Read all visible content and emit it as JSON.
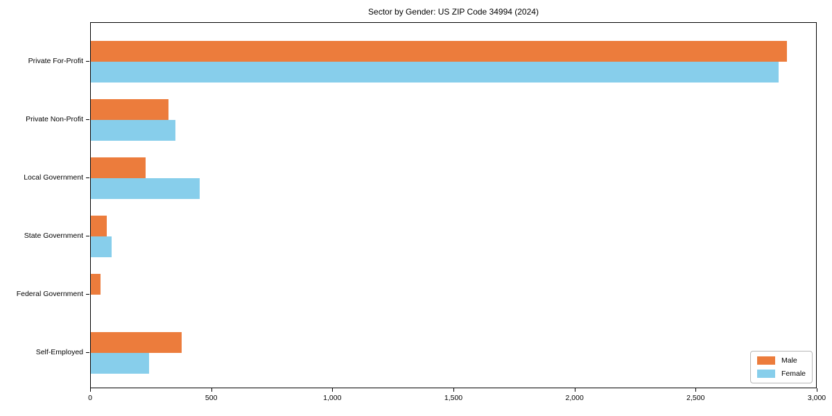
{
  "title": "Sector by Gender: US ZIP Code 34994 (2024)",
  "colors": {
    "male": "#ec7c3c",
    "female": "#87ceeb",
    "axis": "#000000",
    "legend_border": "#b7b7b7",
    "background": "#ffffff"
  },
  "legend": {
    "position": "lower right",
    "items": [
      {
        "label": "Male",
        "color": "#ec7c3c"
      },
      {
        "label": "Female",
        "color": "#87ceeb"
      }
    ]
  },
  "chart_data": {
    "type": "bar",
    "orientation": "horizontal",
    "title": "Sector by Gender: US ZIP Code 34994 (2024)",
    "categories": [
      "Private For-Profit",
      "Private Non-Profit",
      "Local Government",
      "State Government",
      "Federal Government",
      "Self-Employed"
    ],
    "series": [
      {
        "name": "Male",
        "color": "#ec7c3c",
        "values": [
          2875,
          320,
          225,
          65,
          40,
          375
        ]
      },
      {
        "name": "Female",
        "color": "#87ceeb",
        "values": [
          2840,
          350,
          450,
          85,
          0,
          240
        ]
      }
    ],
    "xlabel": "",
    "ylabel": "",
    "xlim": [
      0,
      3000
    ],
    "xticks": [
      0,
      500,
      1000,
      1500,
      2000,
      2500,
      3000
    ],
    "xtick_labels": [
      "0",
      "500",
      "1,000",
      "1,500",
      "2,000",
      "2,500",
      "3,000"
    ],
    "grid": false,
    "legend_position": "lower right"
  }
}
